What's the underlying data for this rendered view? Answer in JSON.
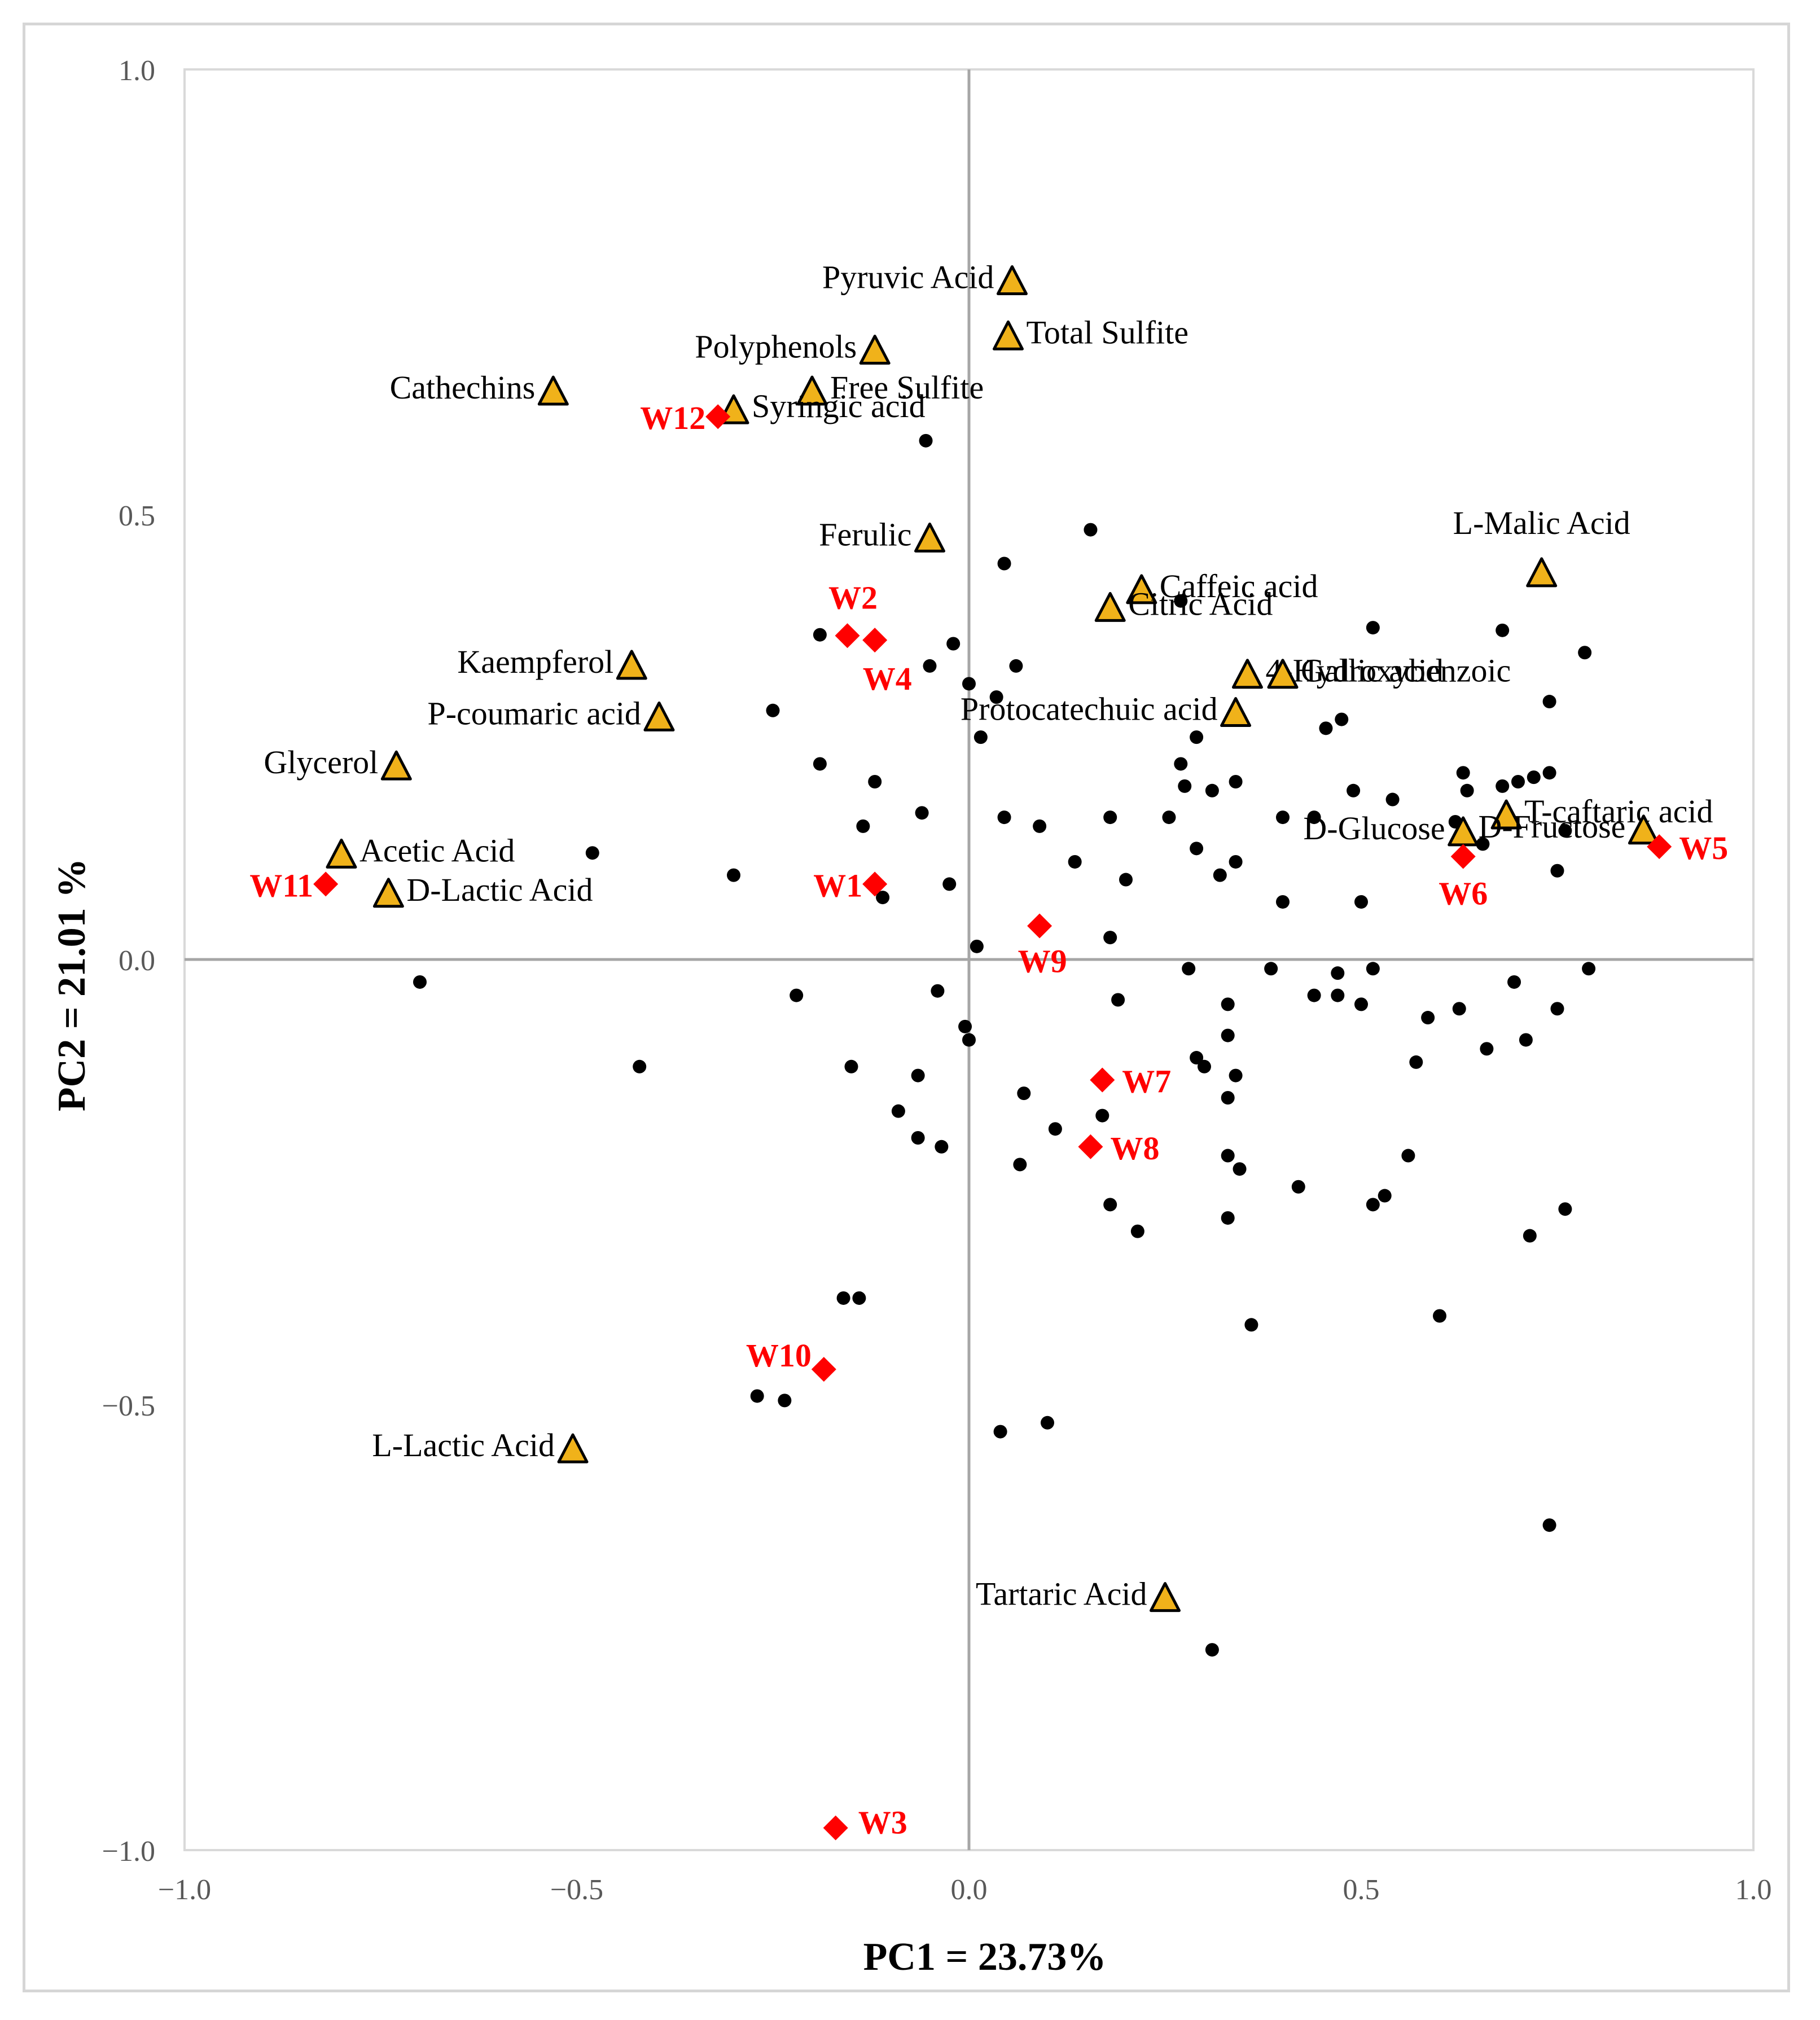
{
  "chart_data": {
    "type": "scatter",
    "title": "",
    "xlabel": "PC1 = 23.73%",
    "ylabel": "PC2 = 21.01 %",
    "xlim": [
      -1.0,
      1.0
    ],
    "ylim": [
      -1.0,
      1.0
    ],
    "xticks": [
      "−1.0",
      "−0.5",
      "0.0",
      "0.5",
      "1.0"
    ],
    "yticks": [
      "1.0",
      "0.5",
      "0.0",
      "−0.5",
      "−1.0"
    ],
    "grid": false,
    "colors": {
      "variable_fill": "#f0b21a",
      "variable_stroke": "#000000",
      "wine": "#ff0000",
      "observation": "#000000",
      "axis_zero": "#a6a6a6",
      "plot_border": "#d9d9d9"
    },
    "variables": [
      {
        "label": "Pyruvic Acid",
        "x": 0.055,
        "y": 0.762,
        "anchor": "end"
      },
      {
        "label": "Total Sulfite",
        "x": 0.05,
        "y": 0.7,
        "anchor": "start"
      },
      {
        "label": "Polyphenols",
        "x": -0.12,
        "y": 0.684,
        "anchor": "end"
      },
      {
        "label": "Cathechins",
        "x": -0.53,
        "y": 0.638,
        "anchor": "end"
      },
      {
        "label": "Free Sulfite",
        "x": -0.2,
        "y": 0.638,
        "anchor": "start"
      },
      {
        "label": "Syringic acid",
        "x": -0.3,
        "y": 0.617,
        "anchor": "start"
      },
      {
        "label": "Ferulic",
        "x": -0.05,
        "y": 0.473,
        "anchor": "end"
      },
      {
        "label": "Caffeic acid",
        "x": 0.22,
        "y": 0.415,
        "anchor": "start"
      },
      {
        "label": "Citric Acid",
        "x": 0.18,
        "y": 0.395,
        "anchor": "start"
      },
      {
        "label": "L-Malic Acid",
        "x": 0.73,
        "y": 0.434,
        "anchor": "middle"
      },
      {
        "label": "4-Hydroxybenzoic",
        "x": 0.355,
        "y": 0.32,
        "anchor": "start"
      },
      {
        "label": "Gallic acid",
        "x": 0.4,
        "y": 0.32,
        "anchor": "start"
      },
      {
        "label": "Kaempferol",
        "x": -0.43,
        "y": 0.33,
        "anchor": "end"
      },
      {
        "label": "P-coumaric acid",
        "x": -0.395,
        "y": 0.272,
        "anchor": "end"
      },
      {
        "label": "Protocatechuic acid",
        "x": 0.34,
        "y": 0.277,
        "anchor": "end"
      },
      {
        "label": "Glycerol",
        "x": -0.73,
        "y": 0.217,
        "anchor": "end"
      },
      {
        "label": "T-caftaric acid",
        "x": 0.685,
        "y": 0.162,
        "anchor": "start"
      },
      {
        "label": "D-Glucose",
        "x": 0.63,
        "y": 0.143,
        "anchor": "end"
      },
      {
        "label": "D-Fructose",
        "x": 0.86,
        "y": 0.145,
        "anchor": "end"
      },
      {
        "label": "Acetic Acid",
        "x": -0.8,
        "y": 0.118,
        "anchor": "start"
      },
      {
        "label": "D-Lactic Acid",
        "x": -0.74,
        "y": 0.074,
        "anchor": "start"
      },
      {
        "label": "L-Lactic Acid",
        "x": -0.505,
        "y": -0.55,
        "anchor": "end"
      },
      {
        "label": "Tartaric Acid",
        "x": 0.25,
        "y": -0.717,
        "anchor": "end"
      }
    ],
    "wines": [
      {
        "label": "W12",
        "x": -0.32,
        "y": 0.61
      },
      {
        "label": "W2",
        "x": -0.155,
        "y": 0.364
      },
      {
        "label": "W4",
        "x": -0.12,
        "y": 0.359
      },
      {
        "label": "W5",
        "x": 0.88,
        "y": 0.127
      },
      {
        "label": "W6",
        "x": 0.63,
        "y": 0.116
      },
      {
        "label": "W11",
        "x": -0.82,
        "y": 0.085
      },
      {
        "label": "W1",
        "x": -0.12,
        "y": 0.085
      },
      {
        "label": "W9",
        "x": 0.09,
        "y": 0.038
      },
      {
        "label": "W7",
        "x": 0.17,
        "y": -0.135
      },
      {
        "label": "W8",
        "x": 0.155,
        "y": -0.21
      },
      {
        "label": "W10",
        "x": -0.185,
        "y": -0.46
      },
      {
        "label": "W3",
        "x": -0.17,
        "y": -0.975
      }
    ],
    "observations": [
      [
        -0.055,
        0.583
      ],
      [
        0.155,
        0.483
      ],
      [
        0.045,
        0.445
      ],
      [
        0.27,
        0.403
      ],
      [
        0.515,
        0.373
      ],
      [
        -0.19,
        0.365
      ],
      [
        -0.02,
        0.355
      ],
      [
        0.0,
        0.31
      ],
      [
        -0.05,
        0.33
      ],
      [
        0.785,
        0.345
      ],
      [
        -0.25,
        0.28
      ],
      [
        0.06,
        0.33
      ],
      [
        0.68,
        0.37
      ],
      [
        0.74,
        0.29
      ],
      [
        0.035,
        0.295
      ],
      [
        0.455,
        0.26
      ],
      [
        0.475,
        0.27
      ],
      [
        0.015,
        0.25
      ],
      [
        0.29,
        0.25
      ],
      [
        -0.19,
        0.22
      ],
      [
        0.27,
        0.22
      ],
      [
        0.34,
        0.2
      ],
      [
        -0.12,
        0.2
      ],
      [
        0.275,
        0.195
      ],
      [
        0.31,
        0.19
      ],
      [
        0.49,
        0.19
      ],
      [
        0.54,
        0.18
      ],
      [
        0.635,
        0.19
      ],
      [
        0.68,
        0.195
      ],
      [
        0.7,
        0.2
      ],
      [
        0.72,
        0.205
      ],
      [
        0.74,
        0.21
      ],
      [
        0.63,
        0.21
      ],
      [
        -0.06,
        0.165
      ],
      [
        -0.135,
        0.15
      ],
      [
        0.045,
        0.16
      ],
      [
        0.09,
        0.15
      ],
      [
        0.18,
        0.16
      ],
      [
        0.255,
        0.16
      ],
      [
        0.4,
        0.16
      ],
      [
        0.44,
        0.16
      ],
      [
        0.62,
        0.155
      ],
      [
        0.76,
        0.145
      ],
      [
        -0.48,
        0.12
      ],
      [
        0.135,
        0.11
      ],
      [
        0.29,
        0.125
      ],
      [
        0.34,
        0.11
      ],
      [
        0.655,
        0.13
      ],
      [
        0.75,
        0.1
      ],
      [
        -0.3,
        0.095
      ],
      [
        0.2,
        0.09
      ],
      [
        0.32,
        0.095
      ],
      [
        -0.025,
        0.085
      ],
      [
        -0.11,
        0.07
      ],
      [
        0.4,
        0.065
      ],
      [
        0.5,
        0.065
      ],
      [
        0.01,
        0.015
      ],
      [
        0.18,
        0.025
      ],
      [
        -0.7,
        -0.025
      ],
      [
        -0.42,
        -0.12
      ],
      [
        -0.22,
        -0.04
      ],
      [
        -0.04,
        -0.035
      ],
      [
        -0.005,
        -0.075
      ],
      [
        0.0,
        -0.09
      ],
      [
        0.07,
        -0.15
      ],
      [
        0.19,
        -0.045
      ],
      [
        0.28,
        -0.01
      ],
      [
        0.33,
        -0.05
      ],
      [
        0.33,
        -0.085
      ],
      [
        0.385,
        -0.01
      ],
      [
        0.44,
        -0.04
      ],
      [
        0.47,
        -0.04
      ],
      [
        0.5,
        -0.05
      ],
      [
        0.515,
        -0.01
      ],
      [
        0.47,
        -0.015
      ],
      [
        0.585,
        -0.065
      ],
      [
        0.625,
        -0.055
      ],
      [
        0.695,
        -0.025
      ],
      [
        0.75,
        -0.055
      ],
      [
        0.79,
        -0.01
      ],
      [
        -0.15,
        -0.12
      ],
      [
        -0.065,
        -0.13
      ],
      [
        -0.09,
        -0.17
      ],
      [
        -0.065,
        -0.2
      ],
      [
        -0.035,
        -0.21
      ],
      [
        0.11,
        -0.19
      ],
      [
        0.17,
        -0.175
      ],
      [
        0.065,
        -0.23
      ],
      [
        0.29,
        -0.11
      ],
      [
        0.3,
        -0.12
      ],
      [
        0.34,
        -0.13
      ],
      [
        0.33,
        -0.155
      ],
      [
        0.33,
        -0.22
      ],
      [
        0.345,
        -0.235
      ],
      [
        0.57,
        -0.115
      ],
      [
        0.66,
        -0.1
      ],
      [
        0.71,
        -0.09
      ],
      [
        0.18,
        -0.275
      ],
      [
        0.215,
        -0.305
      ],
      [
        0.42,
        -0.255
      ],
      [
        0.56,
        -0.22
      ],
      [
        0.515,
        -0.275
      ],
      [
        0.53,
        -0.265
      ],
      [
        0.33,
        -0.29
      ],
      [
        0.76,
        -0.28
      ],
      [
        -0.16,
        -0.38
      ],
      [
        -0.14,
        -0.38
      ],
      [
        -0.27,
        -0.49
      ],
      [
        -0.235,
        -0.495
      ],
      [
        0.04,
        -0.53
      ],
      [
        0.1,
        -0.52
      ],
      [
        0.36,
        -0.41
      ],
      [
        0.6,
        -0.4
      ],
      [
        0.715,
        -0.31
      ],
      [
        0.74,
        -0.635
      ],
      [
        0.31,
        -0.775
      ]
    ]
  }
}
